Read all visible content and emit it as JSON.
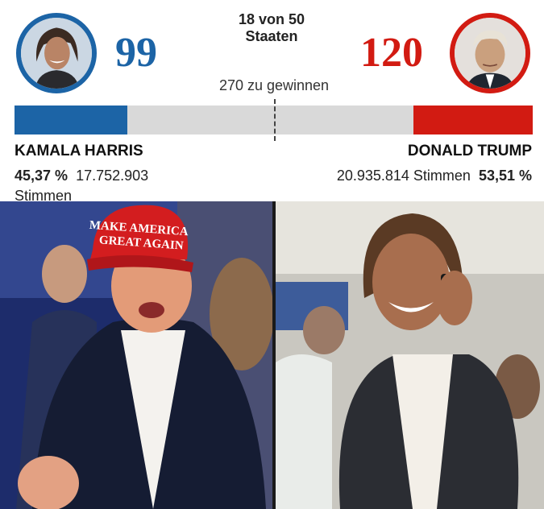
{
  "header": {
    "states_line1": "18 von 50",
    "states_line2": "Staaten",
    "to_win": "270 zu gewinnen"
  },
  "harris": {
    "electoral_votes": "99",
    "name": "KAMALA HARRIS",
    "percent": "45,37 %",
    "votes": "17.752.903",
    "votes_suffix": "Stimmen",
    "color": "#1c64a6"
  },
  "trump": {
    "electoral_votes": "120",
    "name": "DONALD TRUMP",
    "percent": "53,51 %",
    "votes": "20.935.814 Stimmen",
    "color": "#d21b12"
  },
  "progress": {
    "total_electoral_votes": 538,
    "harris_value": 99,
    "trump_value": 120,
    "threshold": 270
  },
  "photos": {
    "left_cap_text": "MAKE AMERICA GREAT AGAIN"
  }
}
